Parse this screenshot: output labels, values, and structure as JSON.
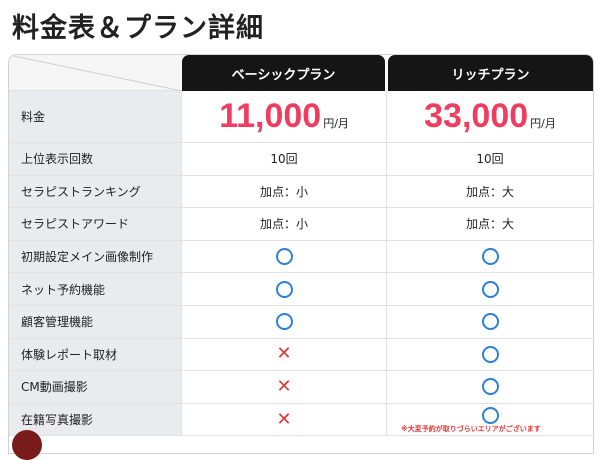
{
  "page": {
    "title": "料金表＆プラン詳細"
  },
  "plans": {
    "basic": {
      "name": "ベーシックプラン",
      "price": "11,000",
      "unit": "円/月"
    },
    "rich": {
      "name": "リッチプラン",
      "price": "33,000",
      "unit": "円/月"
    }
  },
  "rows": [
    {
      "label": "料金"
    },
    {
      "label": "上位表示回数",
      "basic": "10回",
      "rich": "10回"
    },
    {
      "label": "セラピストランキング",
      "basic": "加点：小",
      "rich": "加点：大"
    },
    {
      "label": "セラピストアワード",
      "basic": "加点：小",
      "rich": "加点：大"
    },
    {
      "label": "初期設定メイン画像制作",
      "basic": "circle",
      "rich": "circle"
    },
    {
      "label": "ネット予約機能",
      "basic": "circle",
      "rich": "circle"
    },
    {
      "label": "顧客管理機能",
      "basic": "circle",
      "rich": "circle"
    },
    {
      "label": "体験レポート取材",
      "basic": "cross",
      "rich": "circle"
    },
    {
      "label": "CM動画撮影",
      "basic": "cross",
      "rich": "circle"
    },
    {
      "label": "在籍写真撮影",
      "basic": "cross",
      "rich": "circle"
    }
  ],
  "note": "※大変予約が取りづらいエリアがございます",
  "colors": {
    "accent_price": "#ee3d5f",
    "circle": "#2d7fd8",
    "cross": "#e03636",
    "header_bg": "#151515",
    "label_bg": "#e9ebef"
  }
}
